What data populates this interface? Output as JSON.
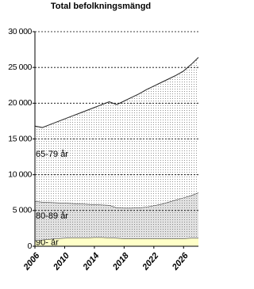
{
  "chart_data": {
    "type": "stacked_area",
    "title": "Total befolkningsmängd",
    "x": [
      2006,
      2007,
      2008,
      2009,
      2010,
      2011,
      2012,
      2013,
      2014,
      2015,
      2016,
      2017,
      2018,
      2019,
      2020,
      2021,
      2022,
      2023,
      2024,
      2025,
      2026,
      2027,
      2028
    ],
    "xlim": [
      2006,
      2028
    ],
    "xticks": [
      2006,
      2010,
      2014,
      2018,
      2022,
      2026
    ],
    "ylim": [
      0,
      30000
    ],
    "yticks": [
      0,
      {
        "value": 5000,
        "label": "5 000"
      },
      {
        "value": 10000,
        "label": "10 000"
      },
      {
        "value": 15000,
        "label": "15 000"
      },
      {
        "value": 20000,
        "label": "20 000"
      },
      {
        "value": 25000,
        "label": "25 000"
      },
      {
        "value": 30000,
        "label": "30 000"
      }
    ],
    "grid": true,
    "series": [
      {
        "name": "90- år",
        "color": "#ffffc8",
        "dotted": false,
        "values": [
          800,
          900,
          1000,
          1100,
          1150,
          1200,
          1200,
          1200,
          1250,
          1250,
          1200,
          1150,
          1100,
          1100,
          1100,
          1100,
          1100,
          1100,
          1100,
          1100,
          1100,
          1150,
          1150
        ]
      },
      {
        "name": "80-89 år",
        "color": "#e2e2e2",
        "dotted": true,
        "values": [
          5500,
          5300,
          5150,
          5000,
          4900,
          4800,
          4750,
          4700,
          4600,
          4550,
          4550,
          4250,
          4250,
          4250,
          4300,
          4400,
          4600,
          4800,
          5100,
          5400,
          5700,
          5950,
          6350
        ]
      },
      {
        "name": "65-79 år",
        "color": "#ffffff",
        "dotted": true,
        "values": [
          10500,
          10400,
          10850,
          11300,
          11750,
          12200,
          12650,
          13100,
          13550,
          14000,
          14450,
          14400,
          14950,
          15450,
          15900,
          16400,
          16700,
          17000,
          17200,
          17400,
          17700,
          18300,
          18900
        ]
      }
    ]
  }
}
